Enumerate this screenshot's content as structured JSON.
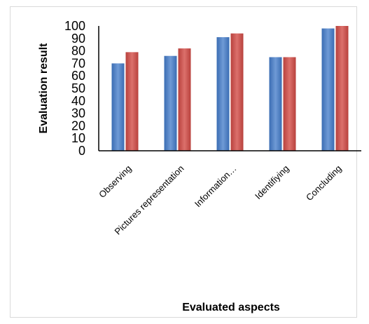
{
  "chart_data": {
    "type": "bar",
    "title": "",
    "xlabel": "Evaluated aspects",
    "ylabel": "Evaluation result",
    "categories": [
      "Observing",
      "Pictures representation",
      "Information…",
      "Identifiying",
      "Concluding"
    ],
    "series": [
      {
        "values": [
          70,
          76,
          91,
          75,
          98
        ],
        "color": "#4f81bd"
      },
      {
        "values": [
          79,
          82,
          94,
          75,
          100
        ],
        "color": "#c0504d"
      }
    ],
    "ylim": [
      0,
      100
    ],
    "yticks": [
      0,
      10,
      20,
      30,
      40,
      50,
      60,
      70,
      80,
      90,
      100
    ],
    "grid": false,
    "legend": "none"
  }
}
